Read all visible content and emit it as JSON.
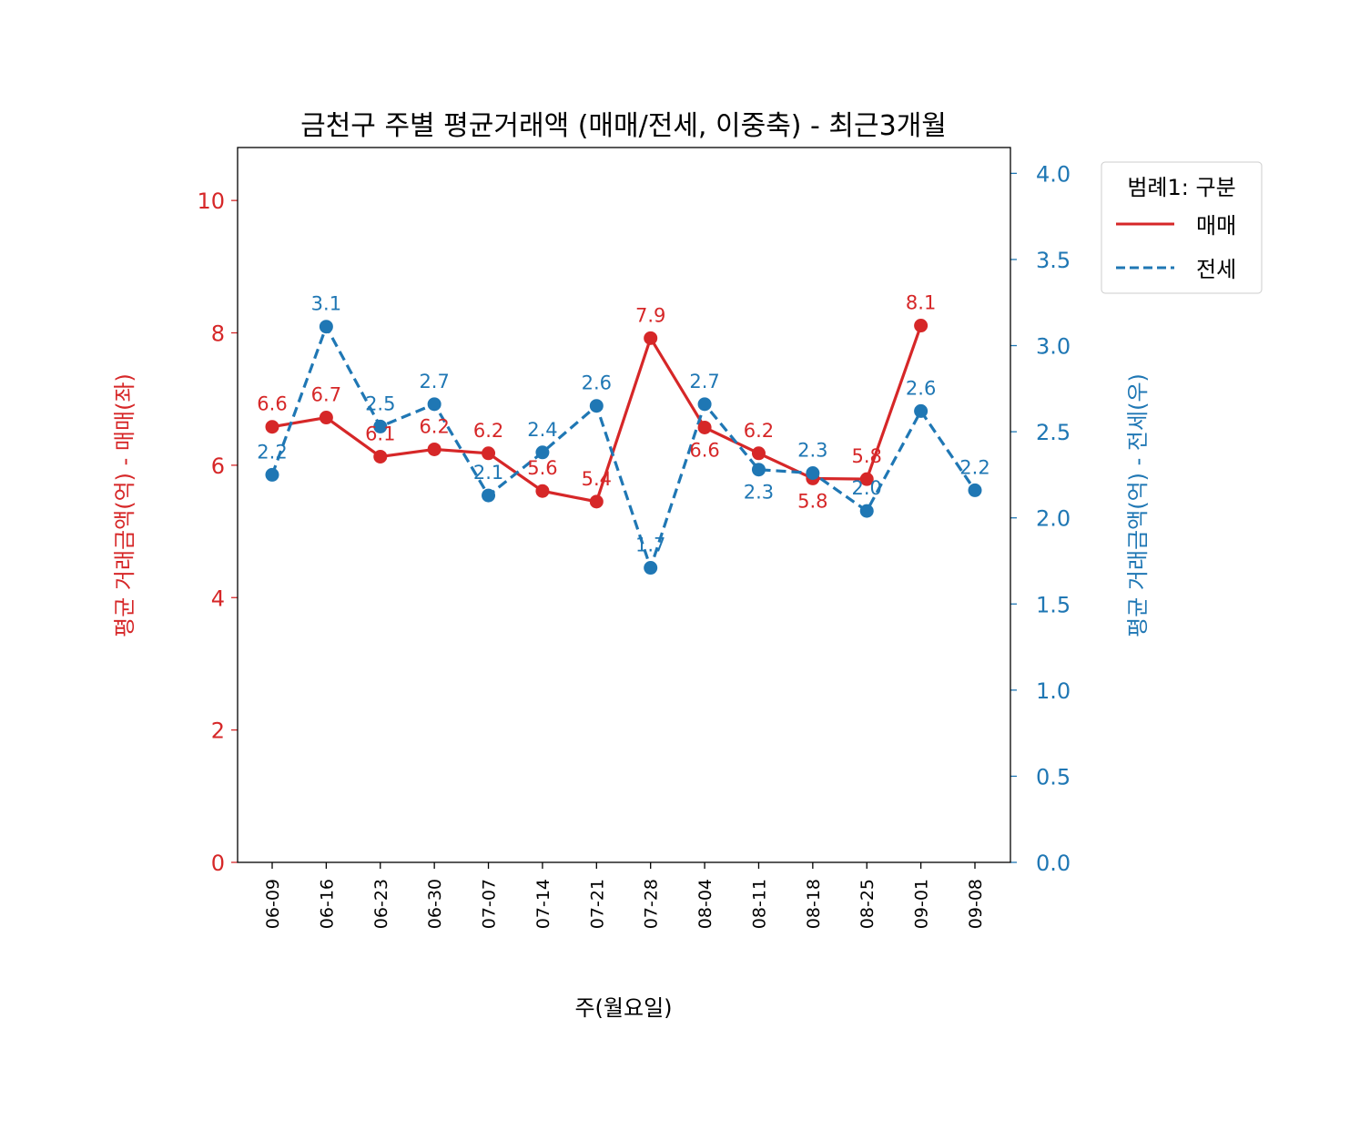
{
  "chart_data": {
    "type": "line",
    "title": "금천구 주별 평균거래액 (매매/전세, 이중축) - 최근3개월",
    "xlabel": "주(월요일)",
    "ylabel_left": "평균 거래금액(억) - 매매(좌)",
    "ylabel_right": "평균 거래금액(억) - 전세(우)",
    "categories": [
      "06-09",
      "06-16",
      "06-23",
      "06-30",
      "07-07",
      "07-14",
      "07-21",
      "07-28",
      "08-04",
      "08-11",
      "08-18",
      "08-25",
      "09-01",
      "09-08"
    ],
    "ylim_left": [
      0,
      10.8
    ],
    "ylim_right": [
      0,
      4.15
    ],
    "yticks_left": [
      "0",
      "2",
      "4",
      "6",
      "8",
      "10"
    ],
    "yticks_right": [
      "0.0",
      "0.5",
      "1.0",
      "1.5",
      "2.0",
      "2.5",
      "3.0",
      "3.5",
      "4.0"
    ],
    "grid": false,
    "legend": {
      "title": "범례1: 구분",
      "placement": "outside-top-right"
    },
    "series": [
      {
        "name": "매매",
        "axis": "left",
        "color": "#d62728",
        "linestyle": "solid",
        "values": [
          6.58,
          6.72,
          6.13,
          6.24,
          6.18,
          5.61,
          5.45,
          7.92,
          6.57,
          6.18,
          5.8,
          5.79,
          8.11,
          null
        ],
        "labels": [
          "6.6",
          "6.7",
          "6.1",
          "6.2",
          "6.2",
          "5.6",
          "5.4",
          "7.9",
          "6.6",
          "6.2",
          "5.8",
          "5.8",
          "8.1",
          ""
        ]
      },
      {
        "name": "전세",
        "axis": "right",
        "color": "#1f77b4",
        "linestyle": "dashed",
        "values": [
          2.25,
          3.11,
          2.53,
          2.66,
          2.13,
          2.38,
          2.65,
          1.71,
          2.66,
          2.28,
          2.26,
          2.04,
          2.62,
          2.16
        ],
        "labels": [
          "2.2",
          "3.1",
          "2.5",
          "2.7",
          "2.1",
          "2.4",
          "2.6",
          "1.7",
          "2.7",
          "2.3",
          "2.3",
          "2.0",
          "2.6",
          "2.2"
        ]
      }
    ]
  }
}
